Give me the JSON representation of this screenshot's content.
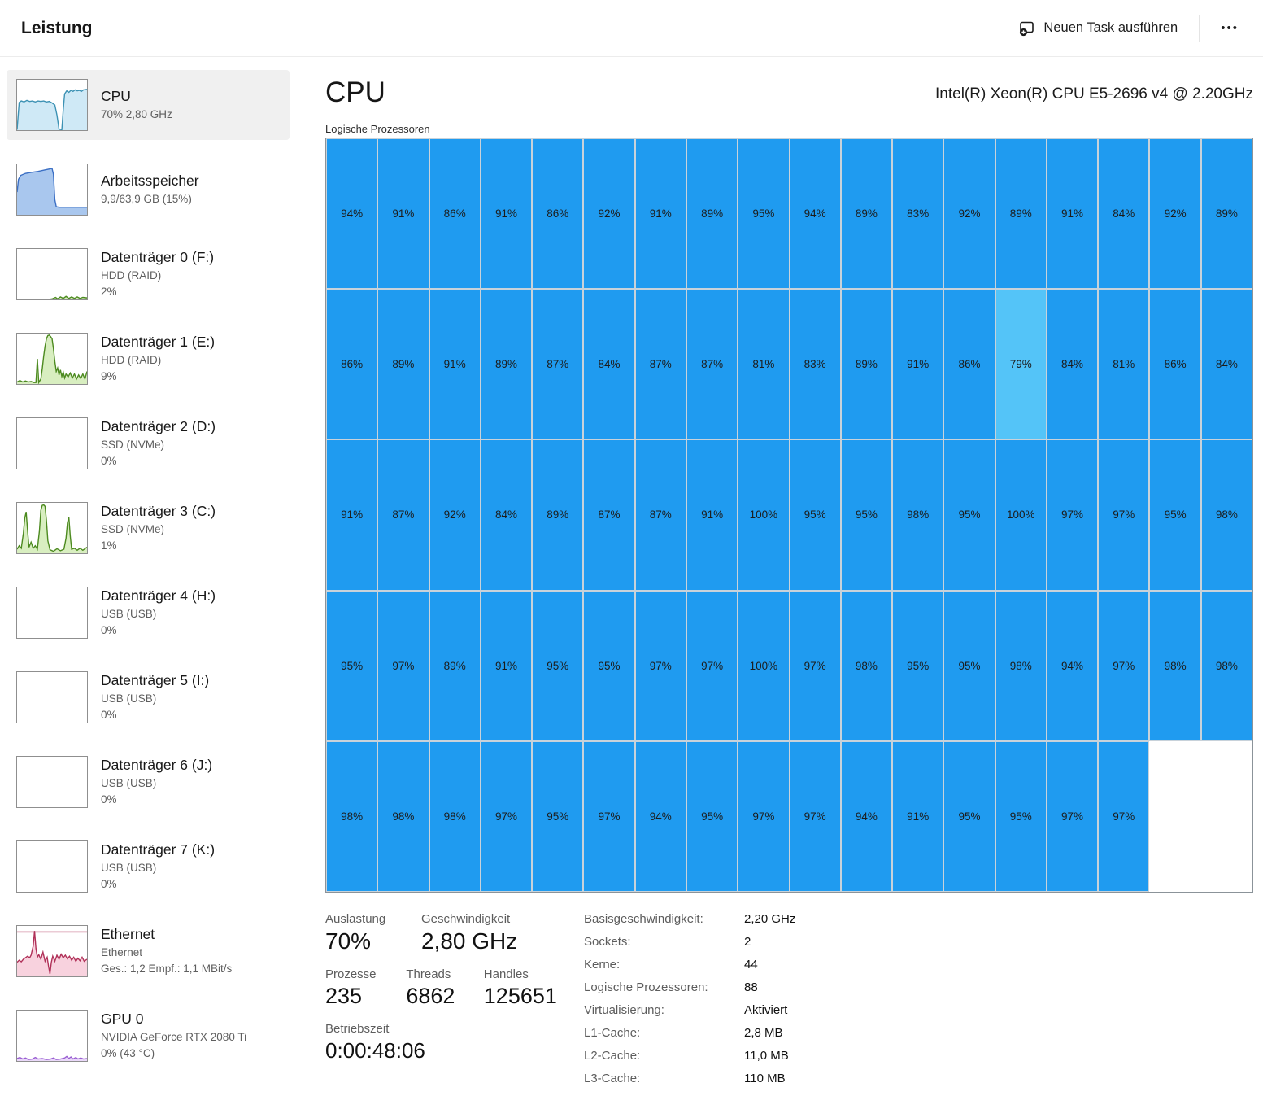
{
  "header": {
    "title": "Leistung",
    "run_task_label": "Neuen Task ausführen",
    "more_label": "•••"
  },
  "sidebar": {
    "items": [
      {
        "id": "cpu",
        "title": "CPU",
        "lines": [
          "70%  2,80 GHz"
        ],
        "selected": true,
        "chart": {
          "stroke": "#3d92b4",
          "fill": "#cfe9f6",
          "points": [
            [
              0,
              99
            ],
            [
              3,
              45
            ],
            [
              6,
              42
            ],
            [
              10,
              44
            ],
            [
              14,
              41
            ],
            [
              18,
              43
            ],
            [
              22,
              42
            ],
            [
              26,
              44
            ],
            [
              30,
              42
            ],
            [
              34,
              43
            ],
            [
              38,
              42
            ],
            [
              42,
              44
            ],
            [
              46,
              43
            ],
            [
              50,
              46
            ],
            [
              54,
              50
            ],
            [
              57,
              70
            ],
            [
              60,
              98
            ],
            [
              64,
              99
            ],
            [
              66,
              60
            ],
            [
              68,
              28
            ],
            [
              71,
              22
            ],
            [
              74,
              25
            ],
            [
              77,
              21
            ],
            [
              80,
              23
            ],
            [
              83,
              20
            ],
            [
              86,
              22
            ],
            [
              89,
              21
            ],
            [
              92,
              23
            ],
            [
              95,
              20
            ],
            [
              100,
              19
            ]
          ]
        }
      },
      {
        "id": "memory",
        "title": "Arbeitsspeicher",
        "lines": [
          "9,9/63,9 GB (15%)"
        ],
        "selected": false,
        "chart": {
          "stroke": "#3b6fc4",
          "fill": "#a9c7ee",
          "points": [
            [
              0,
              55
            ],
            [
              2,
              30
            ],
            [
              5,
              22
            ],
            [
              12,
              18
            ],
            [
              20,
              16
            ],
            [
              30,
              14
            ],
            [
              40,
              11
            ],
            [
              47,
              9
            ],
            [
              50,
              8
            ],
            [
              52,
              20
            ],
            [
              54,
              70
            ],
            [
              56,
              84
            ],
            [
              60,
              85
            ],
            [
              100,
              85
            ]
          ]
        }
      },
      {
        "id": "disk-0",
        "title": "Datenträger 0 (F:)",
        "lines": [
          "HDD (RAID)",
          "2%"
        ],
        "selected": false,
        "chart": {
          "stroke": "#4c8a1f",
          "fill": "#d8eec0",
          "points": [
            [
              0,
              100
            ],
            [
              45,
              100
            ],
            [
              50,
              99
            ],
            [
              55,
              96
            ],
            [
              58,
              99
            ],
            [
              62,
              95
            ],
            [
              66,
              98
            ],
            [
              70,
              94
            ],
            [
              74,
              98
            ],
            [
              78,
              95
            ],
            [
              82,
              98
            ],
            [
              86,
              95
            ],
            [
              90,
              98
            ],
            [
              94,
              96
            ],
            [
              100,
              97
            ]
          ]
        }
      },
      {
        "id": "disk-1",
        "title": "Datenträger 1 (E:)",
        "lines": [
          "HDD (RAID)",
          "9%"
        ],
        "selected": false,
        "chart": {
          "stroke": "#4c8a1f",
          "fill": "#d8eec0",
          "points": [
            [
              0,
              96
            ],
            [
              4,
              93
            ],
            [
              8,
              96
            ],
            [
              12,
              94
            ],
            [
              16,
              96
            ],
            [
              20,
              95
            ],
            [
              24,
              97
            ],
            [
              27,
              97
            ],
            [
              29,
              50
            ],
            [
              31,
              97
            ],
            [
              34,
              90
            ],
            [
              36,
              70
            ],
            [
              38,
              45
            ],
            [
              40,
              25
            ],
            [
              42,
              10
            ],
            [
              44,
              4
            ],
            [
              46,
              3
            ],
            [
              48,
              6
            ],
            [
              50,
              10
            ],
            [
              52,
              30
            ],
            [
              54,
              55
            ],
            [
              56,
              75
            ],
            [
              58,
              68
            ],
            [
              60,
              82
            ],
            [
              62,
              72
            ],
            [
              64,
              85
            ],
            [
              66,
              76
            ],
            [
              68,
              88
            ],
            [
              70,
              80
            ],
            [
              73,
              86
            ],
            [
              76,
              78
            ],
            [
              79,
              88
            ],
            [
              82,
              80
            ],
            [
              85,
              90
            ],
            [
              88,
              82
            ],
            [
              91,
              89
            ],
            [
              94,
              80
            ],
            [
              97,
              90
            ],
            [
              100,
              75
            ]
          ]
        }
      },
      {
        "id": "disk-2",
        "title": "Datenträger 2 (D:)",
        "lines": [
          "SSD (NVMe)",
          "0%"
        ],
        "selected": false,
        "chart": {
          "stroke": "#4c8a1f",
          "fill": "#d8eec0",
          "points": []
        }
      },
      {
        "id": "disk-3",
        "title": "Datenträger 3 (C:)",
        "lines": [
          "SSD (NVMe)",
          "1%"
        ],
        "selected": false,
        "chart": {
          "stroke": "#4c8a1f",
          "fill": "#d8eec0",
          "points": [
            [
              0,
              92
            ],
            [
              3,
              85
            ],
            [
              6,
              90
            ],
            [
              9,
              60
            ],
            [
              11,
              30
            ],
            [
              13,
              18
            ],
            [
              15,
              55
            ],
            [
              17,
              88
            ],
            [
              20,
              78
            ],
            [
              23,
              90
            ],
            [
              26,
              85
            ],
            [
              29,
              92
            ],
            [
              32,
              55
            ],
            [
              34,
              15
            ],
            [
              36,
              5
            ],
            [
              38,
              4
            ],
            [
              40,
              7
            ],
            [
              42,
              35
            ],
            [
              44,
              75
            ],
            [
              47,
              93
            ],
            [
              52,
              96
            ],
            [
              57,
              91
            ],
            [
              62,
              95
            ],
            [
              67,
              92
            ],
            [
              70,
              70
            ],
            [
              72,
              40
            ],
            [
              74,
              28
            ],
            [
              76,
              65
            ],
            [
              78,
              92
            ],
            [
              82,
              90
            ],
            [
              86,
              94
            ],
            [
              90,
              90
            ],
            [
              94,
              94
            ],
            [
              100,
              88
            ]
          ]
        }
      },
      {
        "id": "disk-4",
        "title": "Datenträger 4 (H:)",
        "lines": [
          "USB (USB)",
          "0%"
        ],
        "selected": false,
        "chart": {
          "stroke": "#4c8a1f",
          "fill": "#d8eec0",
          "points": []
        }
      },
      {
        "id": "disk-5",
        "title": "Datenträger 5 (I:)",
        "lines": [
          "USB (USB)",
          "0%"
        ],
        "selected": false,
        "chart": {
          "stroke": "#4c8a1f",
          "fill": "#d8eec0",
          "points": []
        }
      },
      {
        "id": "disk-6",
        "title": "Datenträger 6 (J:)",
        "lines": [
          "USB (USB)",
          "0%"
        ],
        "selected": false,
        "chart": {
          "stroke": "#4c8a1f",
          "fill": "#d8eec0",
          "points": []
        }
      },
      {
        "id": "disk-7",
        "title": "Datenträger 7 (K:)",
        "lines": [
          "USB (USB)",
          "0%"
        ],
        "selected": false,
        "chart": {
          "stroke": "#4c8a1f",
          "fill": "#d8eec0",
          "points": []
        }
      },
      {
        "id": "ethernet",
        "title": "Ethernet",
        "lines": [
          "Ethernet",
          "Ges.:  1,2  Empf.:  1,1 MBit/s"
        ],
        "selected": false,
        "chart": {
          "stroke": "#b03058",
          "fill": "#f8d2de",
          "hline": 12,
          "points": [
            [
              0,
              72
            ],
            [
              3,
              68
            ],
            [
              6,
              71
            ],
            [
              9,
              66
            ],
            [
              12,
              63
            ],
            [
              15,
              60
            ],
            [
              18,
              63
            ],
            [
              20,
              58
            ],
            [
              23,
              40
            ],
            [
              25,
              10
            ],
            [
              27,
              45
            ],
            [
              29,
              62
            ],
            [
              31,
              57
            ],
            [
              34,
              66
            ],
            [
              37,
              52
            ],
            [
              40,
              70
            ],
            [
              43,
              62
            ],
            [
              45,
              80
            ],
            [
              47,
              95
            ],
            [
              49,
              72
            ],
            [
              51,
              60
            ],
            [
              54,
              70
            ],
            [
              57,
              58
            ],
            [
              60,
              66
            ],
            [
              63,
              56
            ],
            [
              66,
              63
            ],
            [
              69,
              58
            ],
            [
              72,
              65
            ],
            [
              75,
              60
            ],
            [
              78,
              68
            ],
            [
              81,
              62
            ],
            [
              84,
              70
            ],
            [
              87,
              64
            ],
            [
              90,
              69
            ],
            [
              93,
              62
            ],
            [
              96,
              70
            ],
            [
              100,
              66
            ]
          ]
        }
      },
      {
        "id": "gpu-0",
        "title": "GPU 0",
        "lines": [
          "NVIDIA GeForce RTX 2080 Ti",
          "0%  (43 °C)"
        ],
        "selected": false,
        "chart": {
          "stroke": "#9a5fd2",
          "fill": "#ead9f9",
          "points": [
            [
              0,
              95
            ],
            [
              4,
              93
            ],
            [
              8,
              96
            ],
            [
              12,
              94
            ],
            [
              16,
              97
            ],
            [
              22,
              96
            ],
            [
              26,
              93
            ],
            [
              30,
              96
            ],
            [
              36,
              95
            ],
            [
              42,
              97
            ],
            [
              48,
              96
            ],
            [
              52,
              94
            ],
            [
              56,
              97
            ],
            [
              62,
              96
            ],
            [
              68,
              94
            ],
            [
              71,
              91
            ],
            [
              74,
              95
            ],
            [
              77,
              92
            ],
            [
              80,
              96
            ],
            [
              84,
              93
            ],
            [
              87,
              96
            ],
            [
              91,
              94
            ],
            [
              95,
              96
            ],
            [
              100,
              95
            ]
          ]
        }
      }
    ]
  },
  "main": {
    "title": "CPU",
    "subtitle": "Intel(R) Xeon(R) CPU E5-2696 v4 @ 2.20GHz",
    "grid_label": "Logische Prozessoren",
    "stats_row1": [
      {
        "label": "Auslastung",
        "value": "70%"
      },
      {
        "label": "Geschwindigkeit",
        "value": "2,80 GHz"
      }
    ],
    "stats_row2": [
      {
        "label": "Prozesse",
        "value": "235"
      },
      {
        "label": "Threads",
        "value": "6862"
      },
      {
        "label": "Handles",
        "value": "125651"
      }
    ],
    "uptime": {
      "label": "Betriebszeit",
      "value": "0:00:48:06"
    },
    "details": [
      {
        "label": "Basisgeschwindigkeit:",
        "value": "2,20 GHz"
      },
      {
        "label": "Sockets:",
        "value": "2"
      },
      {
        "label": "Kerne:",
        "value": "44"
      },
      {
        "label": "Logische Prozessoren:",
        "value": "88"
      },
      {
        "label": "Virtualisierung:",
        "value": "Aktiviert"
      },
      {
        "label": "L1-Cache:",
        "value": "2,8 MB"
      },
      {
        "label": "L2-Cache:",
        "value": "11,0 MB"
      },
      {
        "label": "L3-Cache:",
        "value": "110 MB"
      }
    ]
  },
  "chart_data": {
    "type": "heatmap",
    "title": "Logische Prozessoren",
    "unit": "%",
    "columns": 18,
    "rows": [
      [
        94,
        91,
        86,
        91,
        86,
        92,
        91,
        89,
        95,
        94,
        89,
        83,
        92,
        89,
        91,
        84,
        92,
        89
      ],
      [
        86,
        89,
        91,
        89,
        87,
        84,
        87,
        87,
        81,
        83,
        89,
        91,
        86,
        79,
        84,
        81,
        86,
        84
      ],
      [
        91,
        87,
        92,
        84,
        89,
        87,
        87,
        91,
        100,
        95,
        95,
        98,
        95,
        100,
        97,
        97,
        95,
        98
      ],
      [
        95,
        97,
        89,
        91,
        95,
        95,
        97,
        97,
        100,
        97,
        98,
        95,
        95,
        98,
        94,
        97,
        98,
        98
      ],
      [
        98,
        98,
        98,
        97,
        95,
        97,
        94,
        95,
        97,
        97,
        94,
        91,
        95,
        95,
        97,
        97,
        null,
        null
      ]
    ],
    "light_cells": [
      [
        1,
        13
      ]
    ],
    "colors": {
      "cell": "#1f9bf0",
      "cell_light": "#54c4f8"
    }
  }
}
